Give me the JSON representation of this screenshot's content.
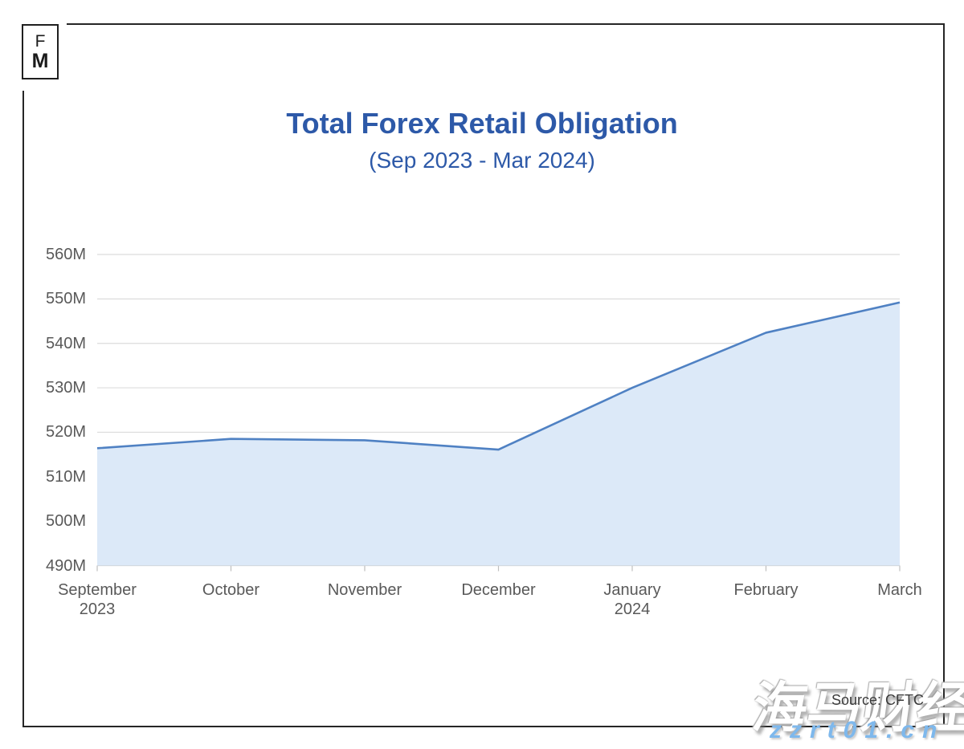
{
  "logo": {
    "top": "F",
    "bottom": "M"
  },
  "header": {
    "title": "Total Forex Retail Obligation",
    "subtitle": "(Sep 2023 - Mar 2024)"
  },
  "footer": {
    "source": "Source: CFTC"
  },
  "watermark": {
    "text": "海马财经",
    "domain": "zzrt01.cn"
  },
  "colors": {
    "title_blue": "#2d59a8",
    "line": "#4f81c3",
    "fill": "#dce9f8",
    "gridline": "#dcdcdc",
    "axis_line": "#c9c9c9",
    "tick": "#bfbfbf",
    "axis_text": "#595959",
    "frame": "#262626",
    "watermark_blue": "#7eb8ec"
  },
  "chart_data": {
    "type": "area",
    "title": "Total Forex Retail Obligation",
    "subtitle": "(Sep 2023 - Mar 2024)",
    "categories": [
      "September 2023",
      "October",
      "November",
      "December",
      "January 2024",
      "February",
      "March"
    ],
    "category_lines": [
      [
        "September",
        "2023"
      ],
      [
        "October"
      ],
      [
        "November"
      ],
      [
        "December"
      ],
      [
        "January",
        "2024"
      ],
      [
        "February"
      ],
      [
        "March"
      ]
    ],
    "values": [
      516.4,
      518.5,
      518.2,
      516.1,
      530.0,
      542.4,
      549.2
    ],
    "unit": "M",
    "xlabel": "",
    "ylabel": "",
    "ylim": [
      490,
      560
    ],
    "ytick_interval": 10,
    "ytick_labels": [
      "490M",
      "500M",
      "510M",
      "520M",
      "530M",
      "540M",
      "550M",
      "560M"
    ],
    "grid": true,
    "legend": false,
    "source": "Source: CFTC"
  }
}
